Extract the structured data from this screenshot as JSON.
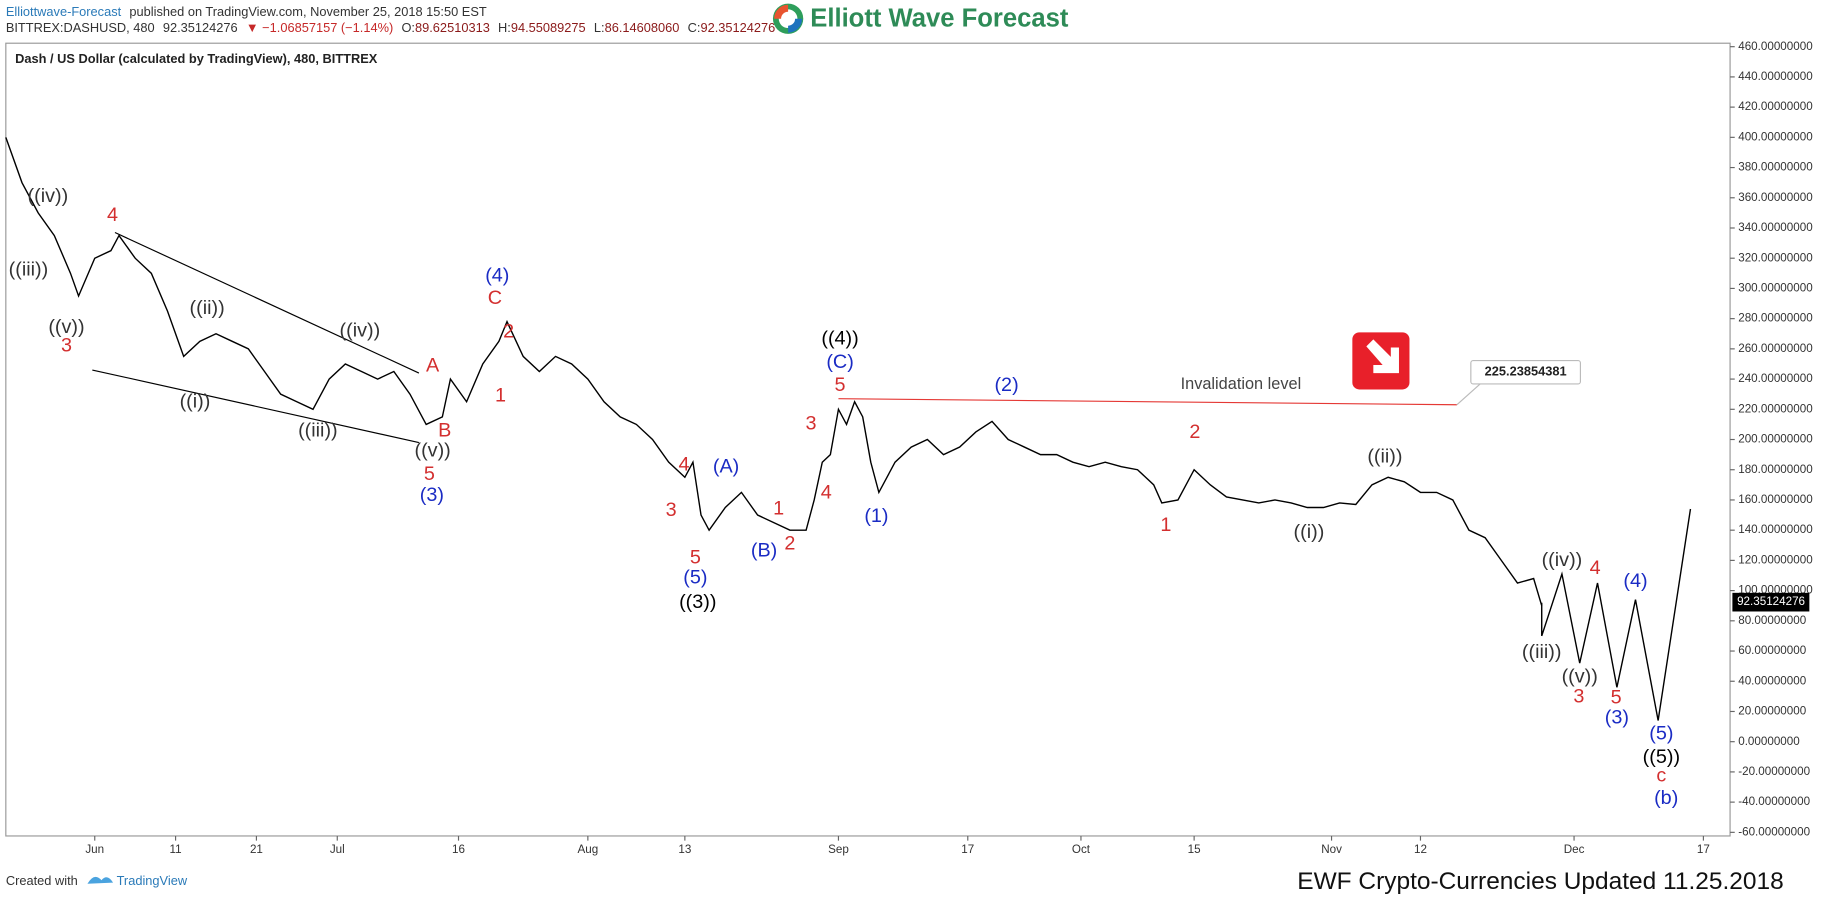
{
  "header": {
    "publisher": "Elliottwave-Forecast",
    "published": "published on TradingView.com, November 25, 2018 15:50 EST",
    "symbol": "BITTREX:DASHUSD, 480",
    "last": "92.35124276",
    "change": "▼ −1.06857157 (−1.14%)",
    "open_label": "O:",
    "open": "89.62510313",
    "high_label": "H:",
    "high": "94.55089275",
    "low_label": "L:",
    "low": "86.14608060",
    "close_label": "C:",
    "close": "92.35124276",
    "logo": "Elliott Wave Forecast"
  },
  "footer": {
    "created": "Created with",
    "brand": "TradingView",
    "note": "EWF Crypto-Currencies Updated 11.25.2018"
  },
  "chart_data": {
    "type": "line",
    "title": "Dash / US Dollar (calculated by TradingView), 480, BITTREX",
    "xlim": [
      141,
      354.3
    ],
    "xticks": [
      {
        "value": 152,
        "label": "Jun"
      },
      {
        "value": 162,
        "label": "11"
      },
      {
        "value": 172,
        "label": "21"
      },
      {
        "value": 182,
        "label": "Jul"
      },
      {
        "value": 197,
        "label": "16"
      },
      {
        "value": 213,
        "label": "Aug"
      },
      {
        "value": 225,
        "label": "13"
      },
      {
        "value": 244,
        "label": "Sep"
      },
      {
        "value": 260,
        "label": "17"
      },
      {
        "value": 274,
        "label": "Oct"
      },
      {
        "value": 288,
        "label": "15"
      },
      {
        "value": 305,
        "label": "Nov"
      },
      {
        "value": 316,
        "label": "12"
      },
      {
        "value": 335,
        "label": "Dec"
      },
      {
        "value": 351,
        "label": "17"
      }
    ],
    "ylim": [
      -62.4,
      462.3
    ],
    "yticks": [
      {
        "value": -60,
        "label": "-60.00000000"
      },
      {
        "value": -40,
        "label": "-40.00000000"
      },
      {
        "value": -20,
        "label": "-20.00000000"
      },
      {
        "value": 0,
        "label": "0.00000000"
      },
      {
        "value": 20,
        "label": "20.00000000"
      },
      {
        "value": 40,
        "label": "40.00000000"
      },
      {
        "value": 60,
        "label": "60.00000000"
      },
      {
        "value": 80,
        "label": "80.00000000"
      },
      {
        "value": 100,
        "label": "100.00000000"
      },
      {
        "value": 120,
        "label": "120.00000000"
      },
      {
        "value": 140,
        "label": "140.00000000"
      },
      {
        "value": 160,
        "label": "160.00000000"
      },
      {
        "value": 180,
        "label": "180.00000000"
      },
      {
        "value": 200,
        "label": "200.00000000"
      },
      {
        "value": 220,
        "label": "220.00000000"
      },
      {
        "value": 240,
        "label": "240.00000000"
      },
      {
        "value": 260,
        "label": "260.00000000"
      },
      {
        "value": 280,
        "label": "280.00000000"
      },
      {
        "value": 300,
        "label": "300.00000000"
      },
      {
        "value": 320,
        "label": "320.00000000"
      },
      {
        "value": 340,
        "label": "340.00000000"
      },
      {
        "value": 360,
        "label": "360.00000000"
      },
      {
        "value": 380,
        "label": "380.00000000"
      },
      {
        "value": 400,
        "label": "400.00000000"
      },
      {
        "value": 420,
        "label": "420.00000000"
      },
      {
        "value": 440,
        "label": "440.00000000"
      },
      {
        "value": 460,
        "label": "460.00000000"
      }
    ],
    "series": [
      {
        "color": "#000000",
        "x": [
          141,
          143,
          145,
          147,
          149,
          150,
          152,
          154,
          155,
          157,
          159,
          161,
          163,
          165,
          167,
          169,
          171,
          173,
          175,
          177,
          179,
          181,
          183,
          185,
          187,
          189,
          191,
          193,
          195,
          196,
          198,
          200,
          202,
          203,
          205,
          207,
          209,
          211,
          213,
          215,
          217,
          219,
          221,
          223,
          225,
          226,
          227,
          228,
          230,
          232,
          234,
          236,
          238,
          240,
          241,
          242,
          243,
          244,
          245,
          246,
          247,
          248,
          249,
          251,
          253,
          255,
          257,
          259,
          261,
          263,
          265,
          267,
          269,
          271,
          273,
          275,
          277,
          279,
          281,
          283,
          284,
          286,
          288,
          290,
          292,
          294,
          296,
          298,
          300,
          302,
          304,
          306,
          308,
          310,
          312,
          314,
          316,
          318,
          320,
          322,
          324,
          326,
          328,
          330,
          331
        ],
        "values": [
          400,
          370,
          350,
          335,
          310,
          295,
          320,
          325,
          335,
          320,
          310,
          285,
          255,
          265,
          270,
          265,
          260,
          245,
          230,
          225,
          220,
          240,
          250,
          245,
          240,
          245,
          230,
          210,
          215,
          240,
          225,
          250,
          265,
          278,
          255,
          245,
          255,
          250,
          240,
          225,
          215,
          210,
          200,
          185,
          175,
          185,
          150,
          140,
          155,
          165,
          150,
          145,
          140,
          140,
          160,
          185,
          190,
          220,
          210,
          225,
          215,
          185,
          165,
          185,
          195,
          200,
          190,
          195,
          205,
          212,
          200,
          195,
          190,
          190,
          185,
          182,
          185,
          182,
          180,
          170,
          158,
          160,
          180,
          170,
          162,
          160,
          158,
          160,
          158,
          155,
          155,
          158,
          157,
          170,
          175,
          172,
          165,
          165,
          160,
          140,
          135,
          120,
          105,
          108,
          90
        ]
      },
      {
        "color": "#000000",
        "x": [
          331,
          331,
          333.5,
          335.7,
          337.9,
          340.3,
          342.6,
          345.4,
          349.4
        ],
        "values": [
          92,
          70,
          111,
          52,
          105,
          36,
          94,
          14,
          154
        ]
      }
    ],
    "trendlines": [
      {
        "color": "#000000",
        "x": [
          154.5,
          192.1
        ],
        "values": [
          337,
          244
        ]
      },
      {
        "color": "#000000",
        "x": [
          151.7,
          192.1
        ],
        "values": [
          246,
          198
        ]
      }
    ],
    "invalidation": {
      "label": "Invalidation level",
      "color": "#e53935",
      "x": [
        244,
        320.5
      ],
      "values": [
        227,
        223
      ],
      "value": 225.23854381
    },
    "last_price": 92.35124276,
    "annotations": [
      {
        "text": "((iv))",
        "x": 146.2,
        "y": 360.5,
        "color": "#333333"
      },
      {
        "text": "((iii))",
        "x": 143.8,
        "y": 311.9,
        "color": "#333333"
      },
      {
        "text": "((v))",
        "x": 148.5,
        "y": 274,
        "color": "#333333"
      },
      {
        "text": "3",
        "x": 148.5,
        "y": 261.7,
        "color": "#d32f2f"
      },
      {
        "text": "4",
        "x": 154.2,
        "y": 348.1,
        "color": "#d32f2f"
      },
      {
        "text": "((ii))",
        "x": 165.9,
        "y": 286.4,
        "color": "#333333"
      },
      {
        "text": "((i))",
        "x": 164.4,
        "y": 224.7,
        "color": "#333333"
      },
      {
        "text": "((iii))",
        "x": 179.6,
        "y": 205.4,
        "color": "#333333"
      },
      {
        "text": "((iv))",
        "x": 184.8,
        "y": 271.7,
        "color": "#333333"
      },
      {
        "text": "A",
        "x": 193.8,
        "y": 248.6,
        "color": "#d32f2f"
      },
      {
        "text": "B",
        "x": 195.3,
        "y": 205.4,
        "color": "#d32f2f"
      },
      {
        "text": "((v))",
        "x": 193.8,
        "y": 192.3,
        "color": "#333333"
      },
      {
        "text": "5",
        "x": 193.4,
        "y": 176.8,
        "color": "#d32f2f"
      },
      {
        "text": "(3)",
        "x": 193.7,
        "y": 162.9,
        "color": "#1a2bc4"
      },
      {
        "text": "(4)",
        "x": 201.8,
        "y": 308,
        "color": "#1a2bc4"
      },
      {
        "text": "C",
        "x": 201.5,
        "y": 293.3,
        "color": "#d32f2f"
      },
      {
        "text": "2",
        "x": 203.2,
        "y": 270.9,
        "color": "#d32f2f"
      },
      {
        "text": "1",
        "x": 202.2,
        "y": 228.5,
        "color": "#d32f2f"
      },
      {
        "text": "3",
        "x": 240.6,
        "y": 210,
        "color": "#d32f2f"
      },
      {
        "text": "4",
        "x": 224.9,
        "y": 183,
        "color": "#d32f2f"
      },
      {
        "text": "(A)",
        "x": 230.1,
        "y": 181.5,
        "color": "#1a2bc4"
      },
      {
        "text": "3",
        "x": 223.3,
        "y": 152.9,
        "color": "#d32f2f"
      },
      {
        "text": "5",
        "x": 226.3,
        "y": 121.3,
        "color": "#d32f2f"
      },
      {
        "text": "(5)",
        "x": 226.3,
        "y": 108.1,
        "color": "#1a2bc4"
      },
      {
        "text": "((3))",
        "x": 226.6,
        "y": 92,
        "color": "#000000"
      },
      {
        "text": "1",
        "x": 236.6,
        "y": 153.7,
        "color": "#d32f2f"
      },
      {
        "text": "(B)",
        "x": 234.8,
        "y": 125.9,
        "color": "#1a2bc4"
      },
      {
        "text": "2",
        "x": 238,
        "y": 130.5,
        "color": "#d32f2f"
      },
      {
        "text": "4",
        "x": 242.5,
        "y": 164.5,
        "color": "#d32f2f"
      },
      {
        "text": "((4))",
        "x": 244.2,
        "y": 266.3,
        "color": "#000000"
      },
      {
        "text": "(C)",
        "x": 244.2,
        "y": 250.9,
        "color": "#1a2bc4"
      },
      {
        "text": "5",
        "x": 244.2,
        "y": 235.5,
        "color": "#d32f2f"
      },
      {
        "text": "(1)",
        "x": 248.7,
        "y": 149,
        "color": "#1a2bc4"
      },
      {
        "text": "(2)",
        "x": 264.8,
        "y": 235.5,
        "color": "#1a2bc4"
      },
      {
        "text": "2",
        "x": 288.1,
        "y": 204.6,
        "color": "#d32f2f"
      },
      {
        "text": "1",
        "x": 284.5,
        "y": 142.9,
        "color": "#d32f2f"
      },
      {
        "text": "((i))",
        "x": 302.2,
        "y": 138.2,
        "color": "#333333"
      },
      {
        "text": "((ii))",
        "x": 311.6,
        "y": 188.4,
        "color": "#333333"
      },
      {
        "text": "((iv))",
        "x": 333.5,
        "y": 119.7,
        "color": "#333333"
      },
      {
        "text": "4",
        "x": 337.6,
        "y": 114.3,
        "color": "#d32f2f"
      },
      {
        "text": "(4)",
        "x": 342.6,
        "y": 105.8,
        "color": "#1a2bc4"
      },
      {
        "text": "((iii))",
        "x": 331,
        "y": 58.8,
        "color": "#333333"
      },
      {
        "text": "((v))",
        "x": 335.7,
        "y": 42.6,
        "color": "#333333"
      },
      {
        "text": "3",
        "x": 335.6,
        "y": 29.4,
        "color": "#d32f2f"
      },
      {
        "text": "5",
        "x": 340.2,
        "y": 28.7,
        "color": "#d32f2f"
      },
      {
        "text": "(3)",
        "x": 340.3,
        "y": 15.6,
        "color": "#1a2bc4"
      },
      {
        "text": "(5)",
        "x": 345.8,
        "y": 4.8,
        "color": "#1a2bc4"
      },
      {
        "text": "((5))",
        "x": 345.8,
        "y": -10.7,
        "color": "#000000"
      },
      {
        "text": "c",
        "x": 345.8,
        "y": -23,
        "color": "#d32f2f"
      },
      {
        "text": "(b)",
        "x": 346.4,
        "y": -37.7,
        "color": "#1a2bc4"
      }
    ]
  }
}
